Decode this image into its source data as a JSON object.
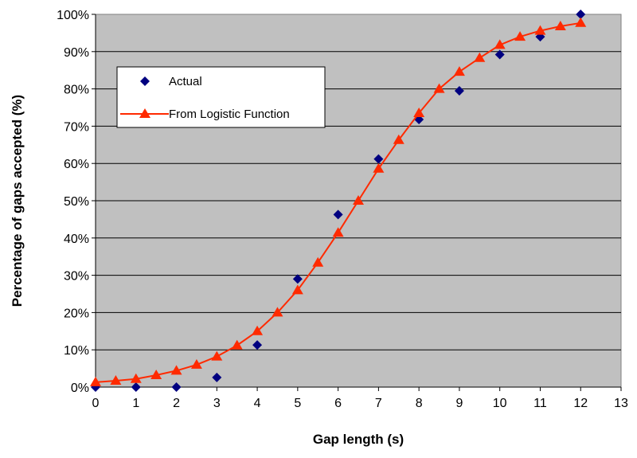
{
  "chart_data": {
    "type": "scatter",
    "xlabel": "Gap length (s)",
    "ylabel": "Percentage of gaps accepted (%)",
    "xlim": [
      0,
      13
    ],
    "ylim": [
      0,
      100
    ],
    "x_ticks": [
      "0",
      "1",
      "2",
      "3",
      "4",
      "5",
      "6",
      "7",
      "8",
      "9",
      "10",
      "11",
      "12",
      "13"
    ],
    "y_ticks": [
      "0%",
      "10%",
      "20%",
      "30%",
      "40%",
      "50%",
      "60%",
      "70%",
      "80%",
      "90%",
      "100%"
    ],
    "grid": "horizontal",
    "plot_background": "#c0c0c0",
    "legend_position": "left inside plot",
    "series": [
      {
        "name": "Actual",
        "marker": "diamond",
        "color": "#000080",
        "line": false,
        "x": [
          0,
          1,
          2,
          3,
          4,
          5,
          6,
          7,
          8,
          9,
          10,
          11,
          12
        ],
        "y": [
          0,
          0,
          0,
          2.6,
          11.3,
          29,
          46.3,
          61.2,
          71.8,
          79.5,
          89.2,
          94,
          100
        ]
      },
      {
        "name": "From Logistic Function",
        "marker": "triangle",
        "color": "#ff2a00",
        "line": true,
        "x": [
          0,
          0.5,
          1,
          1.5,
          2,
          2.5,
          3,
          3.5,
          4,
          4.5,
          5,
          5.5,
          6,
          6.5,
          7,
          7.5,
          8,
          8.5,
          9,
          9.5,
          10,
          10.5,
          11,
          11.5,
          12
        ],
        "y": [
          1.3,
          1.7,
          2.2,
          3.2,
          4.4,
          6,
          8.2,
          11.2,
          15,
          20,
          26,
          33.4,
          41.4,
          50,
          58.6,
          66.3,
          73.5,
          80,
          84.6,
          88.3,
          91.8,
          94,
          95.6,
          96.8,
          97.7
        ]
      }
    ]
  }
}
